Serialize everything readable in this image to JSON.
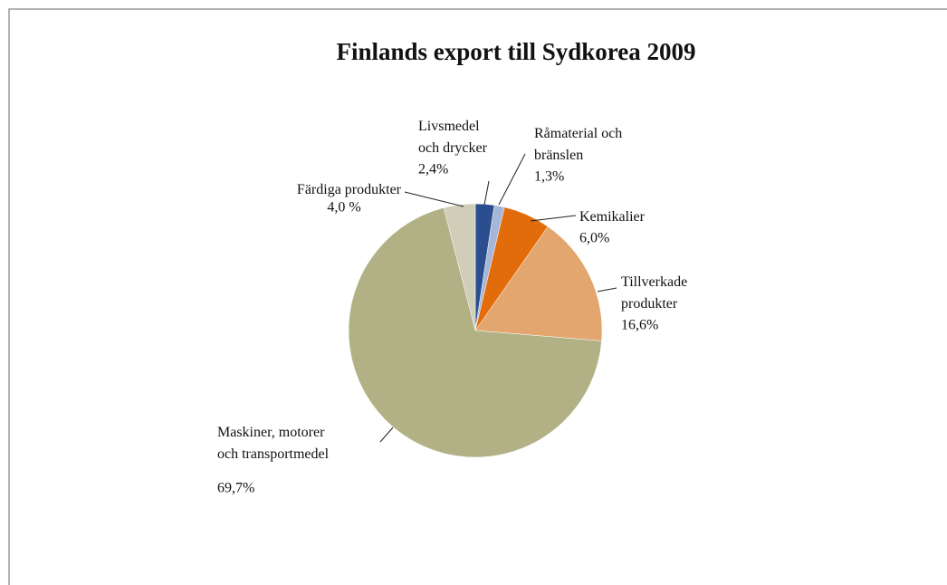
{
  "chart_data": {
    "type": "pie",
    "title": "Finlands export till Sydkorea 2009",
    "categories": [
      "Livsmedel och drycker",
      "Råmaterial och bränslen",
      "Kemikalier",
      "Tillverkade produkter",
      "Maskiner, motorer och transportmedel",
      "Färdiga produkter"
    ],
    "values": [
      2.4,
      1.3,
      6.0,
      16.6,
      69.7,
      4.0
    ],
    "value_labels": [
      "2,4%",
      "1,3%",
      "6,0%",
      "16,6%",
      "69,7%",
      "4,0 %"
    ],
    "colors": [
      "#2b4f8e",
      "#a6b6d8",
      "#e36c0a",
      "#e3a66f",
      "#b1b185",
      "#d0cdb8"
    ]
  }
}
